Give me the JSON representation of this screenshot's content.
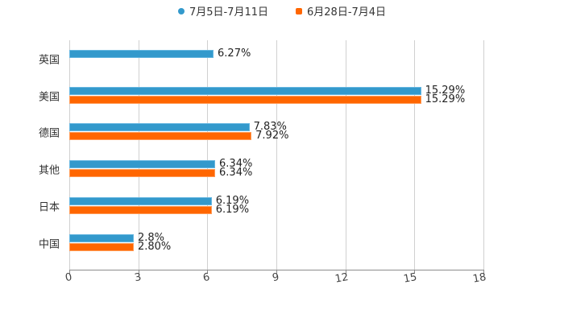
{
  "legend": {
    "series_a": {
      "label": "7月5日-7月11日",
      "color": "#3399cc"
    },
    "series_b": {
      "label": "6月28日-7月4日",
      "color": "#ff6600"
    }
  },
  "chart_data": {
    "type": "bar",
    "orientation": "horizontal",
    "title": "",
    "xlabel": "",
    "ylabel": "",
    "xlim": [
      0,
      18
    ],
    "x_ticks": [
      "0",
      "3",
      "6",
      "9",
      "12",
      "15",
      "18"
    ],
    "grid": true,
    "legend_position": "top",
    "categories": [
      "英国",
      "美国",
      "德国",
      "其他",
      "日本",
      "中国"
    ],
    "series": [
      {
        "name": "7月5日-7月11日",
        "color": "#3399cc",
        "values": [
          6.27,
          15.29,
          7.83,
          6.34,
          6.19,
          2.8
        ],
        "labels": [
          "6.27%",
          "15.29%",
          "7.83%",
          "6.34%",
          "6.19%",
          "2.8%"
        ]
      },
      {
        "name": "6月28日-7月4日",
        "color": "#ff6600",
        "values": [
          null,
          15.29,
          7.92,
          6.34,
          6.19,
          2.8
        ],
        "labels": [
          null,
          "15.29%",
          "7.92%",
          "6.34%",
          "6.19%",
          "2.80%"
        ]
      }
    ]
  }
}
